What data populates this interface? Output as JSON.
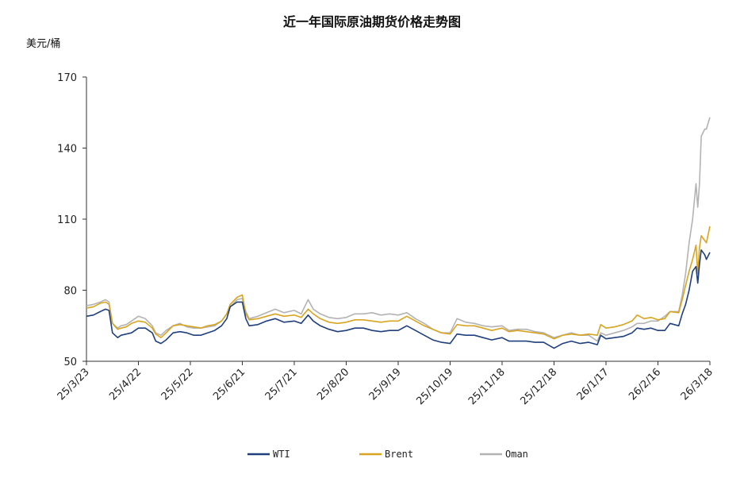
{
  "chart_data": {
    "type": "line",
    "title": "近一年国际原油期货价格走势图",
    "ylabel": "美元/桶",
    "xlabel": "",
    "ylim": [
      50,
      170
    ],
    "yticks": [
      50,
      80,
      110,
      140,
      170
    ],
    "x_range": [
      "2025-03-23",
      "2026-03-18"
    ],
    "x_tick_dates": [
      "2025-03-23",
      "2025-04-22",
      "2025-05-22",
      "2025-06-21",
      "2025-07-21",
      "2025-08-20",
      "2025-09-19",
      "2025-10-19",
      "2025-11-18",
      "2025-12-18",
      "2026-01-17",
      "2026-02-16",
      "2026-03-18"
    ],
    "x_tick_labels": [
      "25/3/23",
      "25/4/22",
      "25/5/22",
      "25/6/21",
      "25/7/21",
      "25/8/20",
      "25/9/19",
      "25/10/19",
      "25/11/18",
      "25/12/18",
      "26/1/17",
      "26/2/16",
      "26/3/18"
    ],
    "grid": false,
    "legend_position": "bottom",
    "series": [
      {
        "name": "WTI",
        "color": "#1f3f7f",
        "points": [
          [
            "2025-03-23",
            69
          ],
          [
            "2025-03-27",
            69.5
          ],
          [
            "2025-03-31",
            71
          ],
          [
            "2025-04-03",
            72
          ],
          [
            "2025-04-05",
            71.5
          ],
          [
            "2025-04-07",
            62
          ],
          [
            "2025-04-10",
            60
          ],
          [
            "2025-04-12",
            61
          ],
          [
            "2025-04-15",
            61.5
          ],
          [
            "2025-04-18",
            62
          ],
          [
            "2025-04-22",
            64
          ],
          [
            "2025-04-26",
            64
          ],
          [
            "2025-04-30",
            62
          ],
          [
            "2025-05-02",
            58.5
          ],
          [
            "2025-05-05",
            57.5
          ],
          [
            "2025-05-08",
            59
          ],
          [
            "2025-05-12",
            62
          ],
          [
            "2025-05-16",
            62.5
          ],
          [
            "2025-05-20",
            62
          ],
          [
            "2025-05-24",
            61
          ],
          [
            "2025-05-28",
            61
          ],
          [
            "2025-06-01",
            62
          ],
          [
            "2025-06-05",
            63
          ],
          [
            "2025-06-09",
            65
          ],
          [
            "2025-06-12",
            68
          ],
          [
            "2025-06-14",
            73
          ],
          [
            "2025-06-18",
            75
          ],
          [
            "2025-06-21",
            75
          ],
          [
            "2025-06-23",
            68
          ],
          [
            "2025-06-25",
            65
          ],
          [
            "2025-06-30",
            65.5
          ],
          [
            "2025-07-05",
            67
          ],
          [
            "2025-07-10",
            68
          ],
          [
            "2025-07-15",
            66.5
          ],
          [
            "2025-07-21",
            67
          ],
          [
            "2025-07-25",
            66
          ],
          [
            "2025-07-29",
            69.5
          ],
          [
            "2025-08-01",
            67
          ],
          [
            "2025-08-05",
            65
          ],
          [
            "2025-08-10",
            63.5
          ],
          [
            "2025-08-15",
            62.5
          ],
          [
            "2025-08-20",
            63
          ],
          [
            "2025-08-25",
            64
          ],
          [
            "2025-08-30",
            64
          ],
          [
            "2025-09-04",
            63
          ],
          [
            "2025-09-09",
            62.5
          ],
          [
            "2025-09-14",
            63
          ],
          [
            "2025-09-19",
            63
          ],
          [
            "2025-09-24",
            65
          ],
          [
            "2025-09-29",
            63
          ],
          [
            "2025-10-04",
            61
          ],
          [
            "2025-10-09",
            59
          ],
          [
            "2025-10-14",
            58
          ],
          [
            "2025-10-19",
            57.5
          ],
          [
            "2025-10-23",
            61.5
          ],
          [
            "2025-10-28",
            61
          ],
          [
            "2025-11-02",
            61
          ],
          [
            "2025-11-07",
            60
          ],
          [
            "2025-11-12",
            59
          ],
          [
            "2025-11-18",
            60
          ],
          [
            "2025-11-22",
            58.5
          ],
          [
            "2025-11-27",
            58.5
          ],
          [
            "2025-12-02",
            58.5
          ],
          [
            "2025-12-07",
            58
          ],
          [
            "2025-12-12",
            58
          ],
          [
            "2025-12-18",
            55.5
          ],
          [
            "2025-12-23",
            57.5
          ],
          [
            "2025-12-28",
            58.5
          ],
          [
            "2026-01-02",
            57.5
          ],
          [
            "2026-01-07",
            58
          ],
          [
            "2026-01-12",
            57
          ],
          [
            "2026-01-14",
            61
          ],
          [
            "2026-01-17",
            59.5
          ],
          [
            "2026-01-22",
            60
          ],
          [
            "2026-01-27",
            60.5
          ],
          [
            "2026-02-01",
            62
          ],
          [
            "2026-02-04",
            64
          ],
          [
            "2026-02-08",
            63.5
          ],
          [
            "2026-02-12",
            64
          ],
          [
            "2026-02-16",
            63
          ],
          [
            "2026-02-20",
            63
          ],
          [
            "2026-02-23",
            66
          ],
          [
            "2026-02-28",
            65
          ],
          [
            "2026-03-02",
            70
          ],
          [
            "2026-03-04",
            74
          ],
          [
            "2026-03-06",
            80
          ],
          [
            "2026-03-08",
            88
          ],
          [
            "2026-03-10",
            90
          ],
          [
            "2026-03-11",
            83
          ],
          [
            "2026-03-12",
            91
          ],
          [
            "2026-03-13",
            97
          ],
          [
            "2026-03-15",
            95
          ],
          [
            "2026-03-16",
            93
          ],
          [
            "2026-03-18",
            96
          ]
        ]
      },
      {
        "name": "Brent",
        "color": "#d9a520",
        "points": [
          [
            "2025-03-23",
            72.5
          ],
          [
            "2025-03-27",
            73
          ],
          [
            "2025-03-31",
            74.5
          ],
          [
            "2025-04-03",
            75
          ],
          [
            "2025-04-05",
            74
          ],
          [
            "2025-04-07",
            66
          ],
          [
            "2025-04-10",
            63.5
          ],
          [
            "2025-04-12",
            64
          ],
          [
            "2025-04-15",
            64.5
          ],
          [
            "2025-04-18",
            66
          ],
          [
            "2025-04-22",
            67
          ],
          [
            "2025-04-26",
            66.5
          ],
          [
            "2025-04-30",
            64
          ],
          [
            "2025-05-02",
            61.5
          ],
          [
            "2025-05-05",
            60
          ],
          [
            "2025-05-08",
            62
          ],
          [
            "2025-05-12",
            65
          ],
          [
            "2025-05-16",
            65.5
          ],
          [
            "2025-05-20",
            65
          ],
          [
            "2025-05-24",
            64.5
          ],
          [
            "2025-05-28",
            64
          ],
          [
            "2025-06-01",
            65
          ],
          [
            "2025-06-05",
            65.5
          ],
          [
            "2025-06-09",
            67
          ],
          [
            "2025-06-12",
            70
          ],
          [
            "2025-06-14",
            74
          ],
          [
            "2025-06-18",
            77
          ],
          [
            "2025-06-21",
            78
          ],
          [
            "2025-06-23",
            70
          ],
          [
            "2025-06-25",
            67.5
          ],
          [
            "2025-06-30",
            68
          ],
          [
            "2025-07-05",
            69
          ],
          [
            "2025-07-10",
            70
          ],
          [
            "2025-07-15",
            69
          ],
          [
            "2025-07-21",
            69.5
          ],
          [
            "2025-07-25",
            68.5
          ],
          [
            "2025-07-29",
            72
          ],
          [
            "2025-08-01",
            70
          ],
          [
            "2025-08-05",
            68
          ],
          [
            "2025-08-10",
            66.5
          ],
          [
            "2025-08-15",
            66
          ],
          [
            "2025-08-20",
            66.5
          ],
          [
            "2025-08-25",
            67.5
          ],
          [
            "2025-08-30",
            67.5
          ],
          [
            "2025-09-04",
            67
          ],
          [
            "2025-09-09",
            66.5
          ],
          [
            "2025-09-14",
            67
          ],
          [
            "2025-09-19",
            67
          ],
          [
            "2025-09-24",
            69
          ],
          [
            "2025-09-29",
            67
          ],
          [
            "2025-10-04",
            65
          ],
          [
            "2025-10-09",
            63.5
          ],
          [
            "2025-10-14",
            62
          ],
          [
            "2025-10-19",
            61.5
          ],
          [
            "2025-10-23",
            65.5
          ],
          [
            "2025-10-28",
            65
          ],
          [
            "2025-11-02",
            65
          ],
          [
            "2025-11-07",
            64
          ],
          [
            "2025-11-12",
            63
          ],
          [
            "2025-11-18",
            64
          ],
          [
            "2025-11-22",
            62.5
          ],
          [
            "2025-11-27",
            63
          ],
          [
            "2025-12-02",
            62.5
          ],
          [
            "2025-12-07",
            62
          ],
          [
            "2025-12-12",
            61.5
          ],
          [
            "2025-12-18",
            59.5
          ],
          [
            "2025-12-23",
            61
          ],
          [
            "2025-12-28",
            61.5
          ],
          [
            "2026-01-02",
            61
          ],
          [
            "2026-01-07",
            61.5
          ],
          [
            "2026-01-12",
            61
          ],
          [
            "2026-01-14",
            65.5
          ],
          [
            "2026-01-17",
            64
          ],
          [
            "2026-01-22",
            64.5
          ],
          [
            "2026-01-27",
            65.5
          ],
          [
            "2026-02-01",
            67
          ],
          [
            "2026-02-04",
            69.5
          ],
          [
            "2026-02-08",
            68
          ],
          [
            "2026-02-12",
            68.5
          ],
          [
            "2026-02-16",
            67.5
          ],
          [
            "2026-02-20",
            68
          ],
          [
            "2026-02-23",
            71
          ],
          [
            "2026-02-28",
            70.5
          ],
          [
            "2026-03-02",
            76
          ],
          [
            "2026-03-04",
            82
          ],
          [
            "2026-03-06",
            88
          ],
          [
            "2026-03-08",
            93
          ],
          [
            "2026-03-10",
            99
          ],
          [
            "2026-03-11",
            87
          ],
          [
            "2026-03-12",
            98
          ],
          [
            "2026-03-13",
            103
          ],
          [
            "2026-03-15",
            101
          ],
          [
            "2026-03-16",
            100
          ],
          [
            "2026-03-18",
            107
          ]
        ]
      },
      {
        "name": "Oman",
        "color": "#b3b3b3",
        "points": [
          [
            "2025-03-23",
            73.5
          ],
          [
            "2025-03-27",
            74
          ],
          [
            "2025-03-31",
            75
          ],
          [
            "2025-04-03",
            76
          ],
          [
            "2025-04-05",
            75
          ],
          [
            "2025-04-07",
            66
          ],
          [
            "2025-04-10",
            64
          ],
          [
            "2025-04-12",
            65
          ],
          [
            "2025-04-15",
            65.5
          ],
          [
            "2025-04-18",
            67
          ],
          [
            "2025-04-22",
            69
          ],
          [
            "2025-04-26",
            68
          ],
          [
            "2025-04-30",
            65
          ],
          [
            "2025-05-02",
            62
          ],
          [
            "2025-05-05",
            61
          ],
          [
            "2025-05-08",
            63
          ],
          [
            "2025-05-12",
            65
          ],
          [
            "2025-05-16",
            66
          ],
          [
            "2025-05-20",
            64.5
          ],
          [
            "2025-05-24",
            64
          ],
          [
            "2025-05-28",
            64
          ],
          [
            "2025-06-01",
            64.5
          ],
          [
            "2025-06-05",
            65
          ],
          [
            "2025-06-09",
            67
          ],
          [
            "2025-06-12",
            70
          ],
          [
            "2025-06-14",
            73
          ],
          [
            "2025-06-18",
            76
          ],
          [
            "2025-06-21",
            76.5
          ],
          [
            "2025-06-23",
            71
          ],
          [
            "2025-06-25",
            68
          ],
          [
            "2025-06-30",
            69
          ],
          [
            "2025-07-05",
            70.5
          ],
          [
            "2025-07-10",
            72
          ],
          [
            "2025-07-15",
            70.5
          ],
          [
            "2025-07-21",
            71.5
          ],
          [
            "2025-07-25",
            70
          ],
          [
            "2025-07-29",
            76
          ],
          [
            "2025-08-01",
            72
          ],
          [
            "2025-08-05",
            70
          ],
          [
            "2025-08-10",
            68.5
          ],
          [
            "2025-08-15",
            68
          ],
          [
            "2025-08-20",
            68.5
          ],
          [
            "2025-08-25",
            70
          ],
          [
            "2025-08-30",
            70
          ],
          [
            "2025-09-04",
            70.5
          ],
          [
            "2025-09-09",
            69.5
          ],
          [
            "2025-09-14",
            70
          ],
          [
            "2025-09-19",
            69.5
          ],
          [
            "2025-09-24",
            70.5
          ],
          [
            "2025-09-29",
            68
          ],
          [
            "2025-10-04",
            66
          ],
          [
            "2025-10-09",
            63.5
          ],
          [
            "2025-10-14",
            62
          ],
          [
            "2025-10-19",
            62
          ],
          [
            "2025-10-23",
            68
          ],
          [
            "2025-10-28",
            66.5
          ],
          [
            "2025-11-02",
            66
          ],
          [
            "2025-11-07",
            65
          ],
          [
            "2025-11-12",
            64.5
          ],
          [
            "2025-11-18",
            65
          ],
          [
            "2025-11-22",
            63
          ],
          [
            "2025-11-27",
            63.5
          ],
          [
            "2025-12-02",
            63.5
          ],
          [
            "2025-12-07",
            62.5
          ],
          [
            "2025-12-12",
            62
          ],
          [
            "2025-12-18",
            60
          ],
          [
            "2025-12-23",
            61
          ],
          [
            "2025-12-28",
            62
          ],
          [
            "2026-01-02",
            61
          ],
          [
            "2026-01-07",
            61
          ],
          [
            "2026-01-12",
            58.5
          ],
          [
            "2026-01-14",
            62
          ],
          [
            "2026-01-17",
            61
          ],
          [
            "2026-01-22",
            62
          ],
          [
            "2026-01-27",
            63
          ],
          [
            "2026-02-01",
            64.5
          ],
          [
            "2026-02-04",
            66
          ],
          [
            "2026-02-08",
            66
          ],
          [
            "2026-02-12",
            67
          ],
          [
            "2026-02-16",
            67
          ],
          [
            "2026-02-20",
            69
          ],
          [
            "2026-02-23",
            71
          ],
          [
            "2026-02-28",
            71
          ],
          [
            "2026-03-02",
            78
          ],
          [
            "2026-03-04",
            87
          ],
          [
            "2026-03-06",
            100
          ],
          [
            "2026-03-08",
            110
          ],
          [
            "2026-03-10",
            125
          ],
          [
            "2026-03-11",
            115
          ],
          [
            "2026-03-12",
            125
          ],
          [
            "2026-03-13",
            145
          ],
          [
            "2026-03-15",
            148
          ],
          [
            "2026-03-16",
            148
          ],
          [
            "2026-03-18",
            153
          ]
        ]
      }
    ]
  }
}
